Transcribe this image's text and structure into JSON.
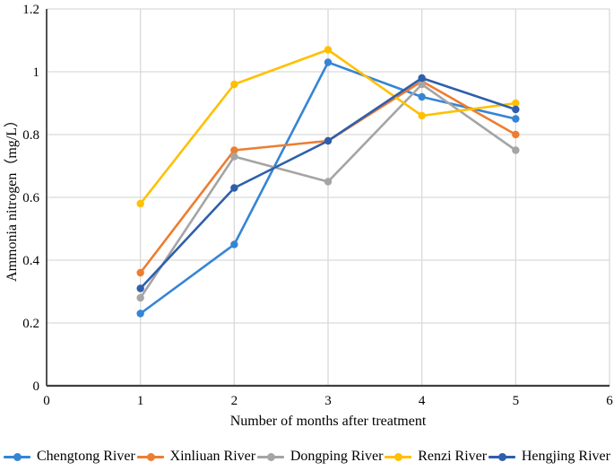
{
  "chart_data": {
    "type": "line",
    "title": "",
    "xlabel": "Number of months after treatment",
    "ylabel": "Ammonia nitrogen（mg/L）",
    "x": [
      1,
      2,
      3,
      4,
      5
    ],
    "xlim": [
      0,
      6
    ],
    "ylim": [
      0,
      1.2
    ],
    "xtick_values": [
      0,
      1,
      2,
      3,
      4,
      5,
      6
    ],
    "xtick_labels": [
      "0",
      "1",
      "2",
      "3",
      "4",
      "5",
      "6"
    ],
    "ytick_values": [
      0,
      0.2,
      0.4,
      0.6,
      0.8,
      1,
      1.2
    ],
    "ytick_labels": [
      "0",
      "0.2",
      "0.4",
      "0.6",
      "0.8",
      "1",
      "1.2"
    ],
    "grid": true,
    "legend_position": "bottom",
    "grid_color": "#D9D9D9",
    "axis_color": "#3F3F3F",
    "series": [
      {
        "name": "Chengtong River",
        "color": "#3585D5",
        "values": [
          0.23,
          0.45,
          1.03,
          0.92,
          0.85
        ]
      },
      {
        "name": "Xinliuan River",
        "color": "#ED7D31",
        "values": [
          0.36,
          0.75,
          0.78,
          0.97,
          0.8
        ]
      },
      {
        "name": "Dongping River",
        "color": "#A5A5A5",
        "values": [
          0.28,
          0.73,
          0.65,
          0.96,
          0.75
        ]
      },
      {
        "name": "Renzi River",
        "color": "#FFC000",
        "values": [
          0.58,
          0.96,
          1.07,
          0.86,
          0.9
        ]
      },
      {
        "name": "Hengjing River",
        "color": "#2E5FAB",
        "values": [
          0.31,
          0.63,
          0.78,
          0.98,
          0.88
        ]
      }
    ]
  }
}
